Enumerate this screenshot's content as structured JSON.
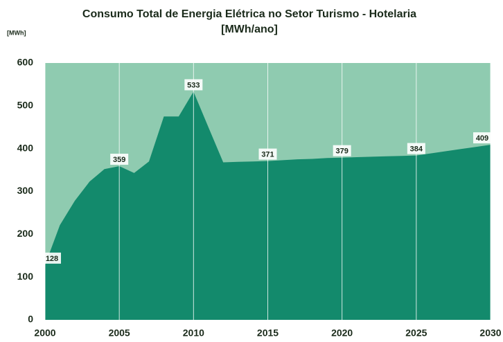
{
  "chart_data": {
    "type": "area",
    "title": "Consumo Total de Energia Elétrica no Setor Turismo - Hotelaria",
    "subtitle": "[MWh/ano]",
    "y_axis_label": "[MWh]",
    "x": [
      2000,
      2001,
      2002,
      2003,
      2004,
      2005,
      2006,
      2007,
      2008,
      2009,
      2010,
      2011,
      2012,
      2013,
      2014,
      2015,
      2016,
      2017,
      2018,
      2019,
      2020,
      2021,
      2022,
      2023,
      2024,
      2025,
      2026,
      2027,
      2028,
      2029,
      2030
    ],
    "values": [
      128,
      221,
      278,
      323,
      352,
      359,
      343,
      370,
      475,
      475,
      533,
      450,
      368,
      369,
      370,
      371,
      373,
      375,
      376,
      378,
      379,
      380,
      381,
      382,
      383,
      384,
      389,
      394,
      399,
      404,
      409
    ],
    "value_labels": [
      "128",
      null,
      null,
      null,
      null,
      "359",
      null,
      null,
      null,
      null,
      "533",
      null,
      null,
      null,
      null,
      "371",
      null,
      null,
      null,
      null,
      "379",
      null,
      null,
      null,
      null,
      "384",
      null,
      null,
      null,
      null,
      "409"
    ],
    "color": "#138a6c",
    "background_color": "#8fcbb0",
    "xlim": [
      2000,
      2030
    ],
    "xticks": [
      2000,
      2005,
      2010,
      2015,
      2020,
      2025,
      2030
    ],
    "ylim": [
      0,
      600
    ],
    "yticks": [
      0,
      100,
      200,
      300,
      400,
      500,
      600
    ],
    "grid": true
  }
}
